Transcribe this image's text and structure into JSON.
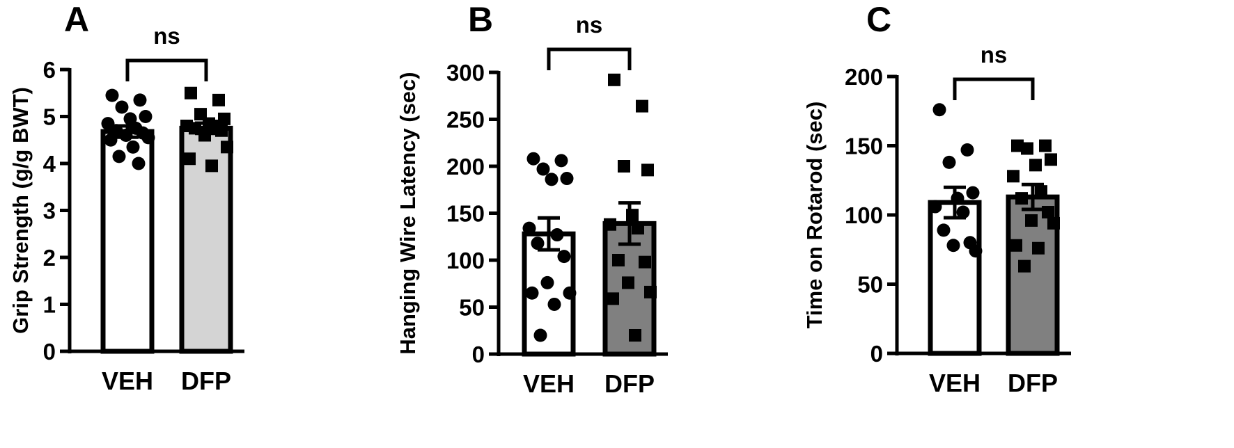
{
  "chart_data": [
    {
      "type": "bar",
      "panel": "A",
      "ylabel": "Grip Strength (g/g BWT)",
      "categories": [
        "VEH",
        "DFP"
      ],
      "ylim": [
        0,
        6
      ],
      "yticks": [
        0,
        1,
        2,
        3,
        4,
        5,
        6
      ],
      "bar_colors": [
        "#ffffff",
        "#d4d4d4"
      ],
      "marker_shapes": [
        "circle",
        "square"
      ],
      "values": [
        4.68,
        4.75
      ],
      "sem": [
        0.12,
        0.11
      ],
      "points": [
        [
          5.45,
          5.35,
          5.2,
          5.0,
          4.95,
          4.85,
          4.75,
          4.7,
          4.65,
          4.6,
          4.55,
          4.5,
          4.35,
          4.15,
          4.0
        ],
        [
          5.5,
          5.35,
          5.05,
          4.95,
          4.85,
          4.8,
          4.8,
          4.75,
          4.7,
          4.6,
          4.35,
          4.1,
          3.95
        ]
      ],
      "significance": "ns"
    },
    {
      "type": "bar",
      "panel": "B",
      "ylabel": "Hanging Wire Latency (sec)",
      "categories": [
        "VEH",
        "DFP"
      ],
      "ylim": [
        0,
        300
      ],
      "yticks": [
        0,
        50,
        100,
        150,
        200,
        250,
        300
      ],
      "bar_colors": [
        "#ffffff",
        "#808080"
      ],
      "marker_shapes": [
        "circle",
        "square"
      ],
      "values": [
        128,
        139
      ],
      "sem": [
        17,
        22
      ],
      "points": [
        [
          208,
          206,
          197,
          187,
          186,
          134,
          127,
          118,
          104,
          76,
          65,
          65,
          53,
          20
        ],
        [
          292,
          264,
          200,
          196,
          148,
          138,
          134,
          100,
          98,
          76,
          66,
          59,
          20
        ]
      ],
      "significance": "ns"
    },
    {
      "type": "bar",
      "panel": "C",
      "ylabel": "Time on Rotarod (sec)",
      "categories": [
        "VEH",
        "DFP"
      ],
      "ylim": [
        0,
        200
      ],
      "yticks": [
        0,
        50,
        100,
        150,
        200
      ],
      "bar_colors": [
        "#ffffff",
        "#808080"
      ],
      "marker_shapes": [
        "circle",
        "square"
      ],
      "values": [
        109,
        113
      ],
      "sem": [
        11,
        9
      ],
      "points": [
        [
          176,
          147,
          138,
          116,
          112,
          106,
          102,
          89,
          80,
          78,
          74
        ],
        [
          150,
          150,
          148,
          140,
          136,
          128,
          117,
          112,
          102,
          96,
          94,
          78,
          76,
          63
        ]
      ],
      "significance": "ns"
    }
  ]
}
